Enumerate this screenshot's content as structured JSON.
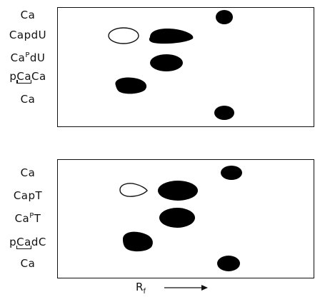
{
  "panels": [
    {
      "lanes": [
        {
          "label": "Ca"
        },
        {
          "label": "CapdU"
        },
        {
          "label_pre": "Ca",
          "label_sup": "P",
          "label_post": "dU"
        },
        {
          "label_pre": "p",
          "label_under": "Ca",
          "label_post": "Ca"
        },
        {
          "label": "Ca"
        }
      ]
    },
    {
      "lanes": [
        {
          "label": "Ca"
        },
        {
          "label": "CapT"
        },
        {
          "label_pre": "Ca",
          "label_sup": "P",
          "label_post": "T"
        },
        {
          "label_pre": "p",
          "label_under": "Ca",
          "label_post": "dC"
        },
        {
          "label": "Ca"
        }
      ]
    }
  ],
  "axis": {
    "label_main": "R",
    "label_sub": "f"
  },
  "colors": {
    "spot_fill": "#000000",
    "outline": "#111111",
    "background": "#ffffff"
  }
}
